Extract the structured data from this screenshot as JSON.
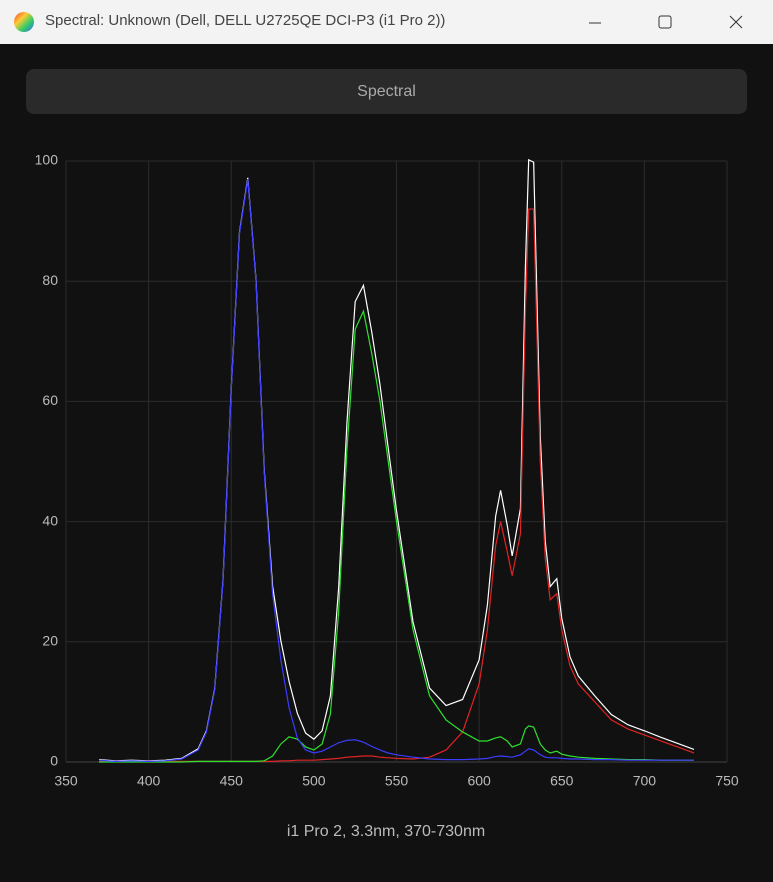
{
  "window": {
    "title": "Spectral: Unknown (Dell, DELL U2725QE DCI-P3 (i1 Pro 2))"
  },
  "button": {
    "label": "Spectral"
  },
  "chart_data": {
    "type": "line",
    "x": [
      370,
      380,
      390,
      400,
      410,
      420,
      430,
      435,
      440,
      445,
      450,
      455,
      460,
      465,
      470,
      475,
      480,
      485,
      490,
      495,
      500,
      505,
      510,
      515,
      520,
      525,
      530,
      535,
      540,
      545,
      550,
      560,
      570,
      580,
      590,
      600,
      605,
      610,
      613,
      617,
      620,
      625,
      628,
      630,
      633,
      637,
      640,
      643,
      647,
      650,
      655,
      660,
      670,
      680,
      690,
      700,
      710,
      720,
      730
    ],
    "series": [
      {
        "color": "#ffffff",
        "values": [
          0.4,
          0.2,
          0.3,
          0.2,
          0.3,
          0.6,
          2.2,
          5.2,
          12.2,
          30.2,
          62.2,
          88.2,
          97.2,
          80.2,
          48.4,
          29.3,
          20.2,
          13.4,
          8.1,
          4.8,
          3.8,
          5.2,
          11,
          29,
          56.4,
          76.6,
          79.3,
          71.6,
          62.8,
          52.2,
          41.8,
          23.3,
          12.3,
          9.4,
          10.4,
          17,
          26.1,
          40.9,
          45.2,
          39.4,
          34.3,
          42.2,
          82.3,
          100.2,
          99.8,
          54.2,
          36.8,
          29.2,
          30.5,
          23.9,
          17.5,
          14.3,
          11,
          7.9,
          6.2,
          5.2,
          4.1,
          3.1,
          2.1
        ]
      },
      {
        "color": "#e02424",
        "values": [
          0.1,
          0.1,
          0.1,
          0.1,
          0.1,
          0.1,
          0.1,
          0.1,
          0.1,
          0.1,
          0.1,
          0.1,
          0.1,
          0.1,
          0.1,
          0.1,
          0.2,
          0.2,
          0.3,
          0.3,
          0.3,
          0.4,
          0.5,
          0.6,
          0.8,
          0.9,
          1,
          1,
          0.8,
          0.7,
          0.6,
          0.5,
          0.8,
          2,
          5,
          13,
          22,
          36,
          40,
          35,
          31,
          38,
          75,
          92,
          92,
          50,
          34,
          27,
          28,
          22,
          16,
          13,
          10,
          7,
          5.5,
          4.5,
          3.5,
          2.5,
          1.5
        ]
      },
      {
        "color": "#30e030",
        "values": [
          0,
          0,
          0,
          0,
          0,
          0,
          0.1,
          0.1,
          0.1,
          0.1,
          0.1,
          0.1,
          0.1,
          0.1,
          0.2,
          1,
          3,
          4.2,
          3.8,
          2.5,
          2,
          3,
          8,
          25,
          52,
          72,
          75,
          68,
          60,
          50,
          40,
          22,
          11,
          7,
          5,
          3.5,
          3.5,
          4,
          4.2,
          3.5,
          2.5,
          3,
          5.5,
          6,
          5.8,
          3,
          2,
          1.5,
          1.8,
          1.3,
          1,
          0.8,
          0.6,
          0.5,
          0.4,
          0.4,
          0.3,
          0.3,
          0.3
        ]
      },
      {
        "color": "#3c3cff",
        "values": [
          0.3,
          0.1,
          0.2,
          0.1,
          0.2,
          0.5,
          2,
          5,
          12,
          30,
          62,
          88,
          97,
          80,
          48,
          28,
          17,
          9,
          4,
          2,
          1.5,
          1.8,
          2.5,
          3.2,
          3.6,
          3.7,
          3.3,
          2.6,
          2,
          1.5,
          1.2,
          0.8,
          0.5,
          0.4,
          0.4,
          0.5,
          0.6,
          0.9,
          1,
          0.9,
          0.8,
          1.2,
          1.8,
          2.2,
          2,
          1.2,
          0.8,
          0.7,
          0.7,
          0.6,
          0.5,
          0.5,
          0.4,
          0.4,
          0.3,
          0.3,
          0.3,
          0.3,
          0.3
        ]
      }
    ],
    "xlim": [
      350,
      750
    ],
    "xticks": [
      350,
      400,
      450,
      500,
      550,
      600,
      650,
      700,
      750
    ],
    "ylim": [
      0,
      100
    ],
    "yticks": [
      0,
      20,
      40,
      60,
      80,
      100
    ],
    "grid": true,
    "caption": "i1 Pro 2, 3.3nm, 370-730nm"
  }
}
